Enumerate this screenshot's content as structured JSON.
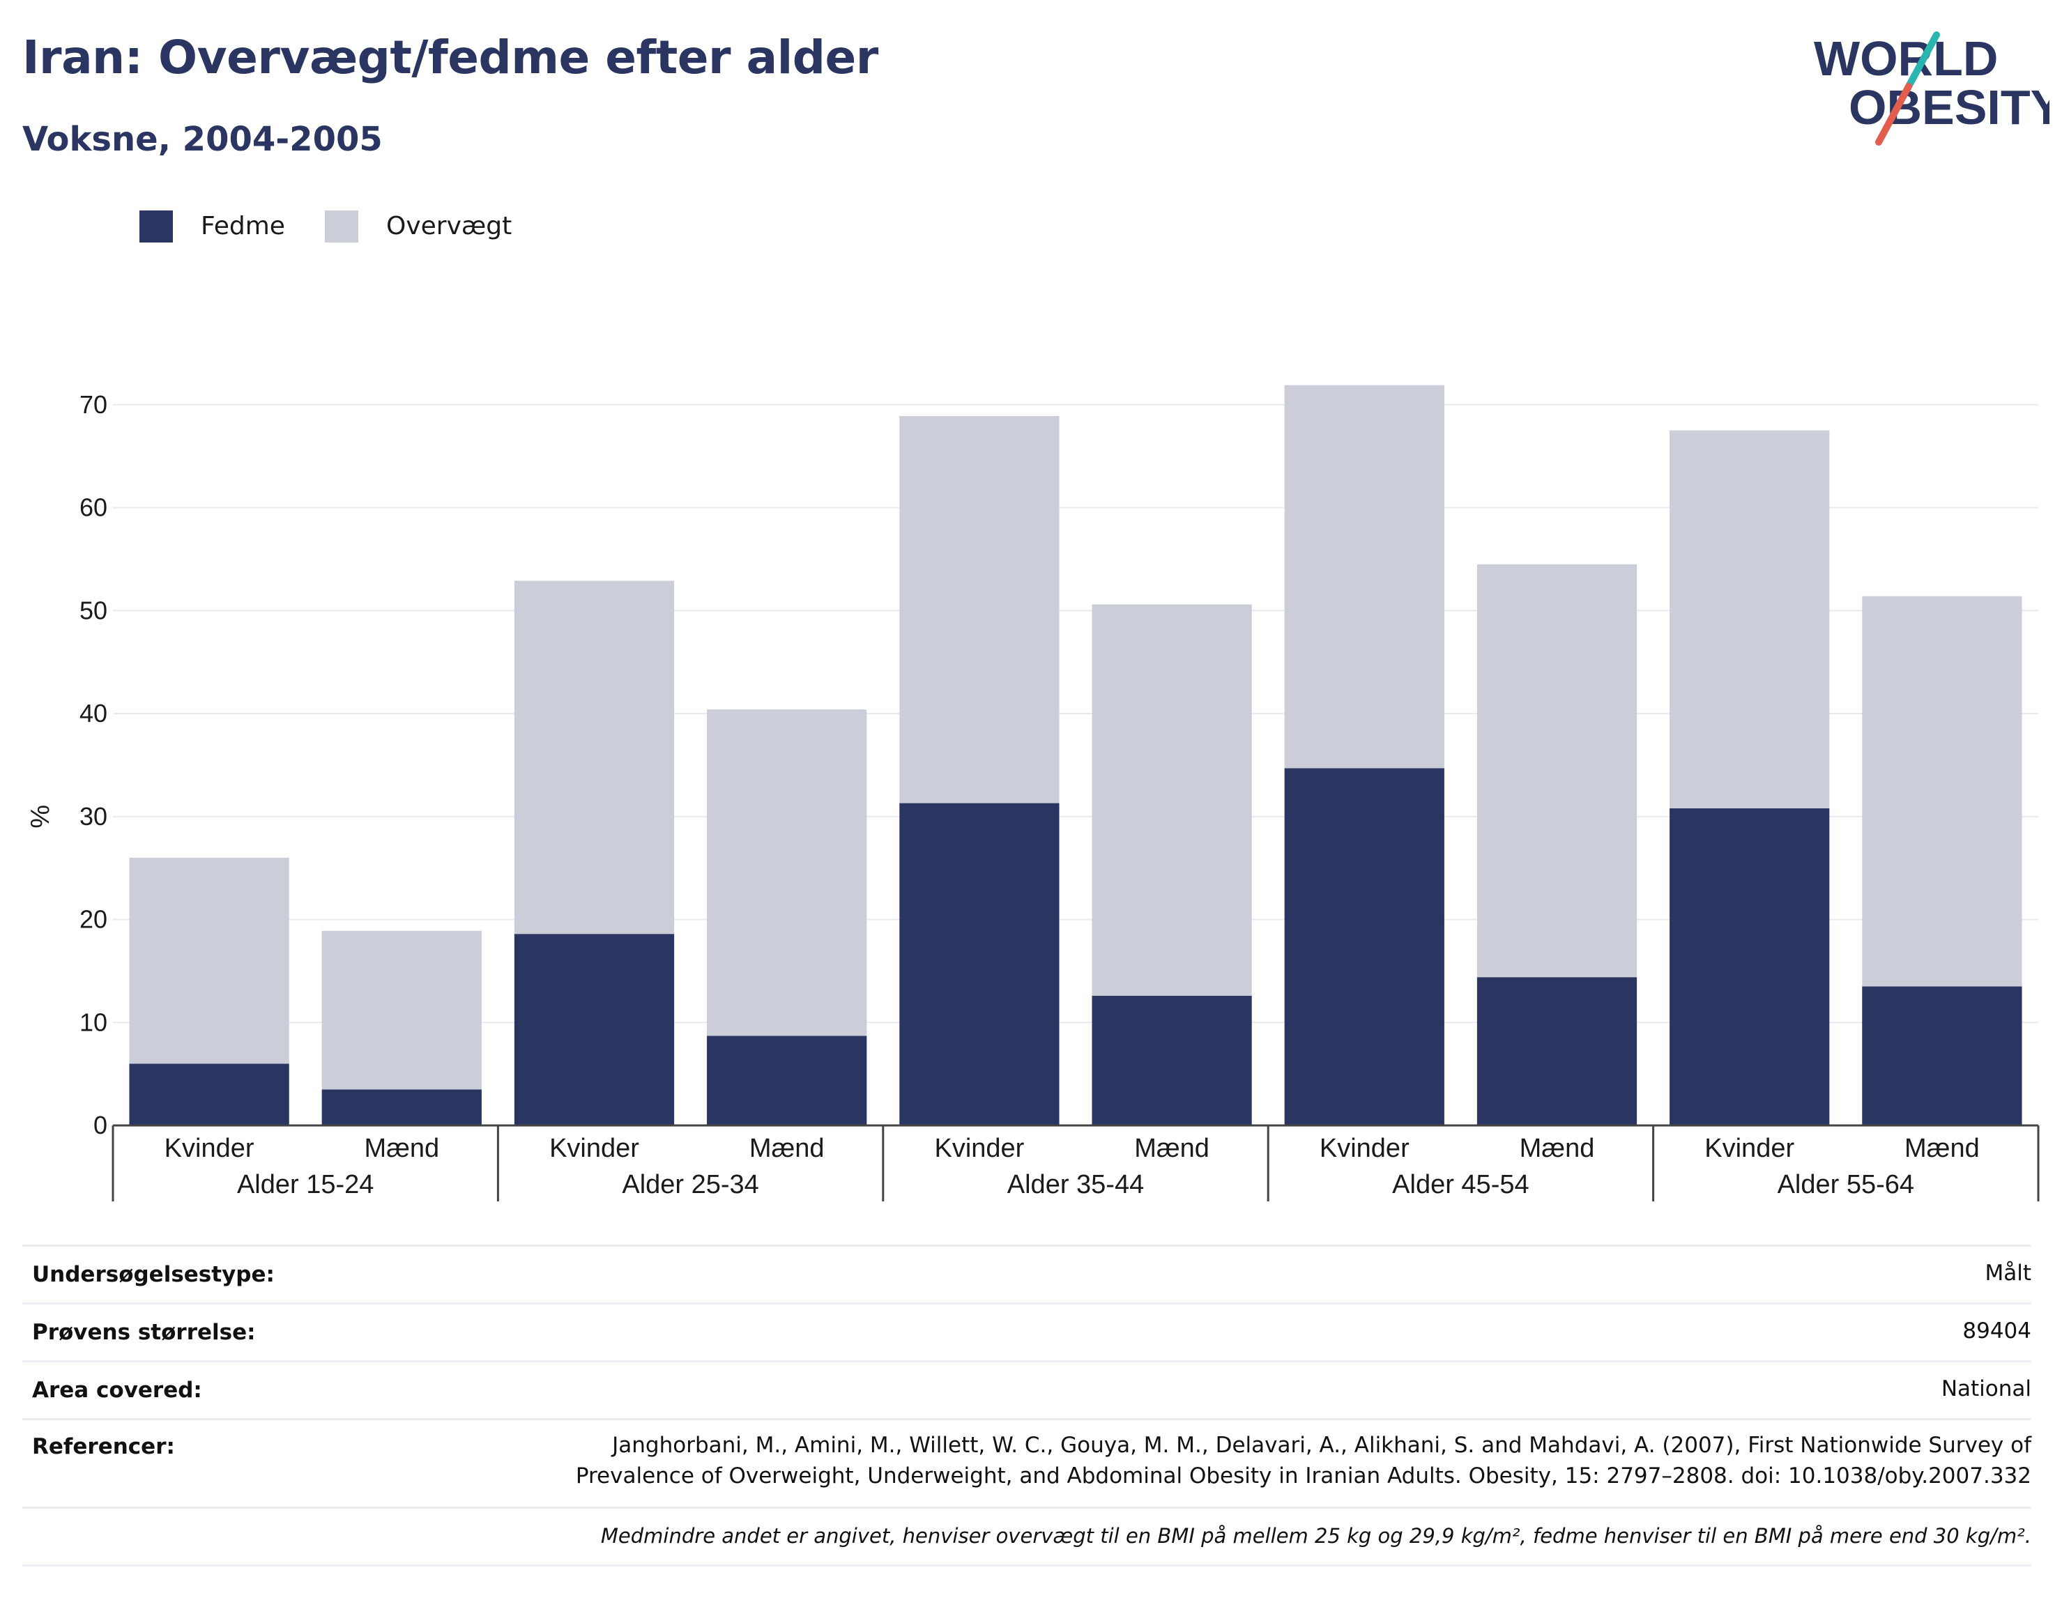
{
  "header": {
    "title": "Iran: Overvægt/fedme efter alder",
    "subtitle": "Voksne, 2004-2005"
  },
  "logo": {
    "line1": "WORLD",
    "line2": "OBESITY",
    "colors": {
      "text": "#2a3561",
      "slash_teal": "#2bb5b0",
      "slash_red": "#e35d4f"
    }
  },
  "legend": [
    {
      "label": "Fedme",
      "color": "#2a3561"
    },
    {
      "label": "Overvægt",
      "color": "#cbcdd8"
    }
  ],
  "chart_data": {
    "type": "bar",
    "stacked": true,
    "ylabel": "%",
    "ylim": [
      0,
      80
    ],
    "yticks": [
      0,
      10,
      20,
      30,
      40,
      50,
      60,
      70
    ],
    "grid": true,
    "legend_position": "top-left",
    "groups": [
      "Alder 15-24",
      "Alder 25-34",
      "Alder 35-44",
      "Alder 45-54",
      "Alder 55-64"
    ],
    "categories": [
      "Kvinder",
      "Mænd",
      "Kvinder",
      "Mænd",
      "Kvinder",
      "Mænd",
      "Kvinder",
      "Mænd",
      "Kvinder",
      "Mænd"
    ],
    "series": [
      {
        "name": "Fedme",
        "color": "#2a3561",
        "values": [
          6.0,
          3.5,
          18.6,
          8.7,
          31.3,
          12.6,
          34.7,
          14.4,
          30.8,
          13.5
        ]
      },
      {
        "name": "Overvægt",
        "color": "#cbcdd8",
        "values": [
          20.0,
          15.4,
          34.3,
          31.7,
          37.6,
          38.0,
          37.2,
          40.1,
          36.7,
          37.9
        ]
      }
    ]
  },
  "info": {
    "rows": [
      {
        "label": "Undersøgelsestype:",
        "value": "Målt"
      },
      {
        "label": "Prøvens størrelse:",
        "value": "89404"
      },
      {
        "label": "Area covered:",
        "value": "National"
      },
      {
        "label": "Referencer:",
        "value_line1": "Janghorbani, M., Amini, M., Willett, W. C., Gouya, M. M., Delavari, A., Alikhani, S. and Mahdavi, A. (2007), First Nationwide Survey of",
        "value_line2": "Prevalence of Overweight, Underweight, and Abdominal Obesity in Iranian Adults. Obesity, 15: 2797–2808. doi: 10.1038/oby.2007.332"
      }
    ],
    "footnote": "Medmindre andet er angivet, henviser overvægt til en BMI på mellem 25 kg og 29,9 kg/m², fedme henviser til en BMI på mere end 30 kg/m²."
  }
}
